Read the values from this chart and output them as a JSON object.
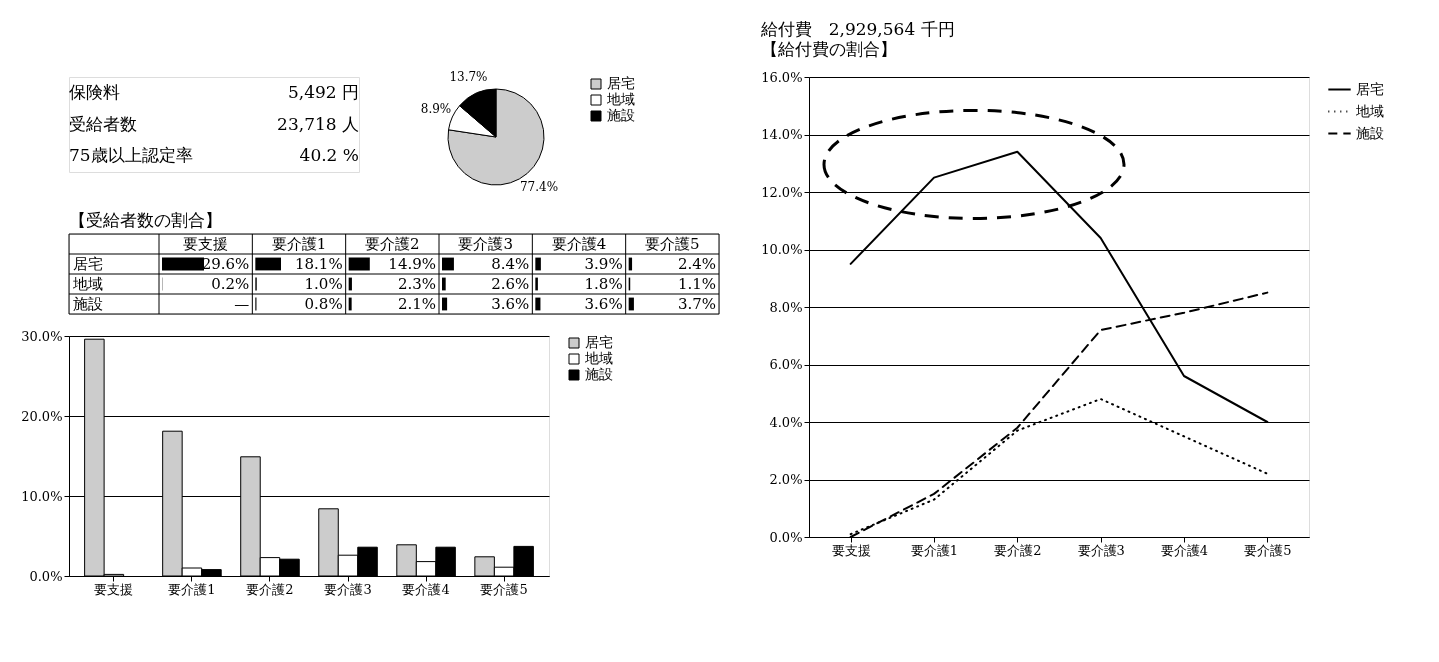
{
  "chart_data": [
    {
      "type": "other",
      "annotations": [
        "保険料",
        "5,492 円",
        "受給者数",
        "23,718 人",
        "75歳以上認定率",
        "40.2 %"
      ]
    },
    {
      "type": "pie",
      "categories": [
        "居宅",
        "地域",
        "施設"
      ],
      "values": [
        77.4,
        8.9,
        13.7
      ],
      "colors": [
        "#cccccc",
        "#ffffff",
        "#000000"
      ],
      "value_labels": [
        "77.4%",
        "8.9%",
        "13.7%"
      ],
      "legend": "right"
    },
    {
      "type": "heatmap",
      "title": "【受給者数の割合】",
      "categories": [
        "要支援",
        "要介護1",
        "要介護2",
        "要介護3",
        "要介護4",
        "要介護5"
      ],
      "y_categories": [
        "居宅",
        "地域",
        "施設"
      ],
      "cells": [
        [
          29.6,
          18.1,
          14.9,
          8.4,
          3.9,
          2.4
        ],
        [
          0.2,
          1.0,
          2.3,
          2.6,
          1.8,
          1.1
        ],
        [
          null,
          0.8,
          2.1,
          3.6,
          3.6,
          3.7
        ]
      ],
      "cell_labels": [
        [
          "29.6%",
          "18.1%",
          "14.9%",
          "8.4%",
          "3.9%",
          "2.4%"
        ],
        [
          "0.2%",
          "1.0%",
          "2.3%",
          "2.6%",
          "1.8%",
          "1.1%"
        ],
        [
          "—",
          "0.8%",
          "2.1%",
          "3.6%",
          "3.6%",
          "3.7%"
        ]
      ]
    },
    {
      "type": "bar",
      "categories": [
        "要支援",
        "要介護1",
        "要介護2",
        "要介護3",
        "要介護4",
        "要介護5"
      ],
      "series": [
        {
          "name": "居宅",
          "color": "#cccccc",
          "values": [
            29.6,
            18.1,
            14.9,
            8.4,
            3.9,
            2.4
          ]
        },
        {
          "name": "地域",
          "color": "#ffffff",
          "values": [
            0.2,
            1.0,
            2.3,
            2.6,
            1.8,
            1.1
          ]
        },
        {
          "name": "施設",
          "color": "#000000",
          "values": [
            null,
            0.8,
            2.1,
            3.6,
            3.6,
            3.7
          ]
        }
      ],
      "ylim": [
        0,
        30
      ],
      "yticks": [
        {
          "value": 0,
          "label": "0.0%"
        },
        {
          "value": 10,
          "label": "10.0%"
        },
        {
          "value": 20,
          "label": "20.0%"
        },
        {
          "value": 30,
          "label": "30.0%"
        }
      ],
      "grid": "y",
      "legend": "right"
    },
    {
      "type": "line",
      "title": "給付費　2,929,564 千円",
      "subtitle": "【給付費の割合】",
      "categories": [
        "要支援",
        "要介護1",
        "要介護2",
        "要介護3",
        "要介護4",
        "要介護5"
      ],
      "series": [
        {
          "name": "居宅",
          "color": "#000000",
          "line_style": "solid",
          "values": [
            9.5,
            12.5,
            13.4,
            10.4,
            5.6,
            4.0
          ]
        },
        {
          "name": "地域",
          "color": "#000000",
          "line_style": "dotted",
          "values": [
            0.1,
            1.3,
            3.7,
            4.8,
            3.5,
            2.2
          ]
        },
        {
          "name": "施設",
          "color": "#000000",
          "line_style": "dashed",
          "values": [
            0.0,
            1.5,
            3.8,
            7.2,
            7.8,
            8.5
          ]
        }
      ],
      "ylim": [
        0,
        16
      ],
      "yticks": [
        {
          "value": 0,
          "label": "0.0%"
        },
        {
          "value": 2,
          "label": "2.0%"
        },
        {
          "value": 4,
          "label": "4.0%"
        },
        {
          "value": 6,
          "label": "6.0%"
        },
        {
          "value": 8,
          "label": "8.0%"
        },
        {
          "value": 10,
          "label": "10.0%"
        },
        {
          "value": 12,
          "label": "12.0%"
        },
        {
          "value": 14,
          "label": "14.0%"
        },
        {
          "value": 16,
          "label": "16.0%"
        }
      ],
      "grid": "y",
      "legend": "right",
      "marker": "none"
    }
  ]
}
